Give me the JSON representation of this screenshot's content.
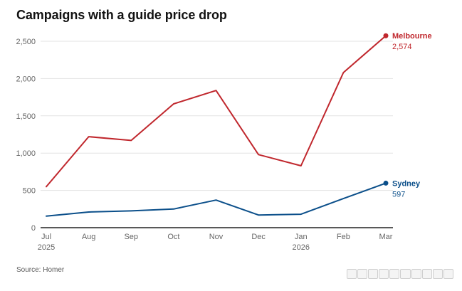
{
  "chart_data": {
    "type": "line",
    "title": "Campaigns with a guide price drop",
    "source": "Source: Homer",
    "categories": [
      "Jul 2025",
      "Aug",
      "Sep",
      "Oct",
      "Nov",
      "Dec",
      "Jan 2026",
      "Feb",
      "Mar"
    ],
    "tick_labels": [
      {
        "month": "Jul",
        "year": "2025"
      },
      {
        "month": "Aug",
        "year": ""
      },
      {
        "month": "Sep",
        "year": ""
      },
      {
        "month": "Oct",
        "year": ""
      },
      {
        "month": "Nov",
        "year": ""
      },
      {
        "month": "Dec",
        "year": ""
      },
      {
        "month": "Jan",
        "year": "2026"
      },
      {
        "month": "Feb",
        "year": ""
      },
      {
        "month": "Mar",
        "year": ""
      }
    ],
    "ylim": [
      0,
      2500
    ],
    "yticks": [
      0,
      500,
      1000,
      1500,
      2000,
      2500
    ],
    "ytick_labels": [
      "0",
      "500",
      "1,000",
      "1,500",
      "2,000",
      "2,500"
    ],
    "grid": true,
    "xlabel": "",
    "ylabel": "",
    "series": [
      {
        "name": "Melbourne",
        "color": "#c0272d",
        "values": [
          550,
          1220,
          1170,
          1660,
          1840,
          980,
          830,
          2080,
          2574
        ],
        "end_label": "2,574"
      },
      {
        "name": "Sydney",
        "color": "#0b4f8a",
        "values": [
          155,
          210,
          225,
          250,
          370,
          170,
          180,
          390,
          597
        ],
        "end_label": "597"
      }
    ]
  }
}
